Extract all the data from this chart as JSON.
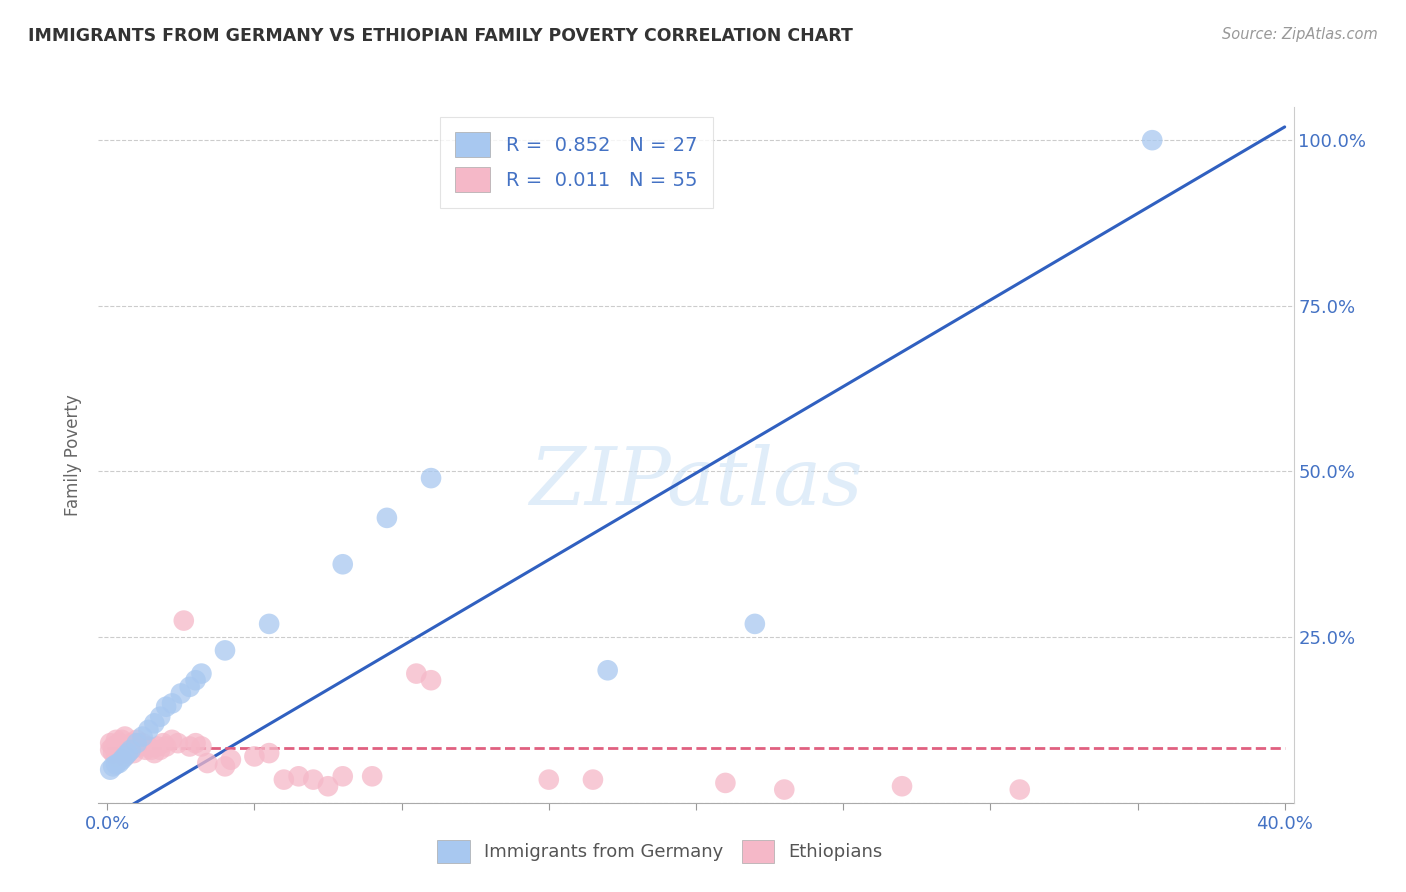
{
  "title": "IMMIGRANTS FROM GERMANY VS ETHIOPIAN FAMILY POVERTY CORRELATION CHART",
  "source": "Source: ZipAtlas.com",
  "ylabel": "Family Poverty",
  "legend_label_1": "Immigrants from Germany",
  "legend_label_2": "Ethiopians",
  "R1": 0.852,
  "N1": 27,
  "R2": 0.011,
  "N2": 55,
  "color_blue": "#A8C8F0",
  "color_pink": "#F5B8C8",
  "color_blue_line": "#3060C0",
  "color_pink_line": "#E06080",
  "watermark": "ZIPatlas",
  "xlim": [
    0.0,
    0.4
  ],
  "ylim": [
    0.0,
    1.05
  ],
  "germany_x": [
    0.001,
    0.002,
    0.003,
    0.004,
    0.005,
    0.006,
    0.007,
    0.008,
    0.01,
    0.012,
    0.014,
    0.016,
    0.018,
    0.02,
    0.022,
    0.025,
    0.028,
    0.03,
    0.032,
    0.04,
    0.055,
    0.08,
    0.095,
    0.11,
    0.17,
    0.22,
    0.355
  ],
  "germany_y": [
    0.05,
    0.055,
    0.058,
    0.06,
    0.065,
    0.07,
    0.075,
    0.08,
    0.09,
    0.1,
    0.11,
    0.12,
    0.13,
    0.145,
    0.15,
    0.165,
    0.175,
    0.185,
    0.195,
    0.23,
    0.27,
    0.36,
    0.43,
    0.49,
    0.2,
    0.27,
    1.0
  ],
  "ethiopia_x": [
    0.001,
    0.001,
    0.002,
    0.002,
    0.003,
    0.003,
    0.004,
    0.004,
    0.005,
    0.005,
    0.006,
    0.006,
    0.007,
    0.007,
    0.008,
    0.008,
    0.009,
    0.009,
    0.01,
    0.01,
    0.011,
    0.012,
    0.013,
    0.014,
    0.015,
    0.016,
    0.017,
    0.018,
    0.019,
    0.02,
    0.022,
    0.024,
    0.026,
    0.028,
    0.03,
    0.032,
    0.034,
    0.04,
    0.042,
    0.05,
    0.055,
    0.06,
    0.065,
    0.07,
    0.075,
    0.08,
    0.09,
    0.105,
    0.11,
    0.15,
    0.165,
    0.21,
    0.23,
    0.27,
    0.31
  ],
  "ethiopia_y": [
    0.08,
    0.09,
    0.075,
    0.085,
    0.07,
    0.095,
    0.08,
    0.09,
    0.085,
    0.095,
    0.07,
    0.1,
    0.075,
    0.085,
    0.08,
    0.09,
    0.075,
    0.085,
    0.09,
    0.095,
    0.085,
    0.09,
    0.08,
    0.085,
    0.08,
    0.075,
    0.085,
    0.08,
    0.09,
    0.085,
    0.095,
    0.09,
    0.275,
    0.085,
    0.09,
    0.085,
    0.06,
    0.055,
    0.065,
    0.07,
    0.075,
    0.035,
    0.04,
    0.035,
    0.025,
    0.04,
    0.04,
    0.195,
    0.185,
    0.035,
    0.035,
    0.03,
    0.02,
    0.025,
    0.02
  ],
  "blue_line_x": [
    0.0,
    0.4
  ],
  "blue_line_y": [
    -0.025,
    1.02
  ],
  "pink_line_x": [
    0.0,
    0.4
  ],
  "pink_line_y": [
    0.082,
    0.082
  ]
}
